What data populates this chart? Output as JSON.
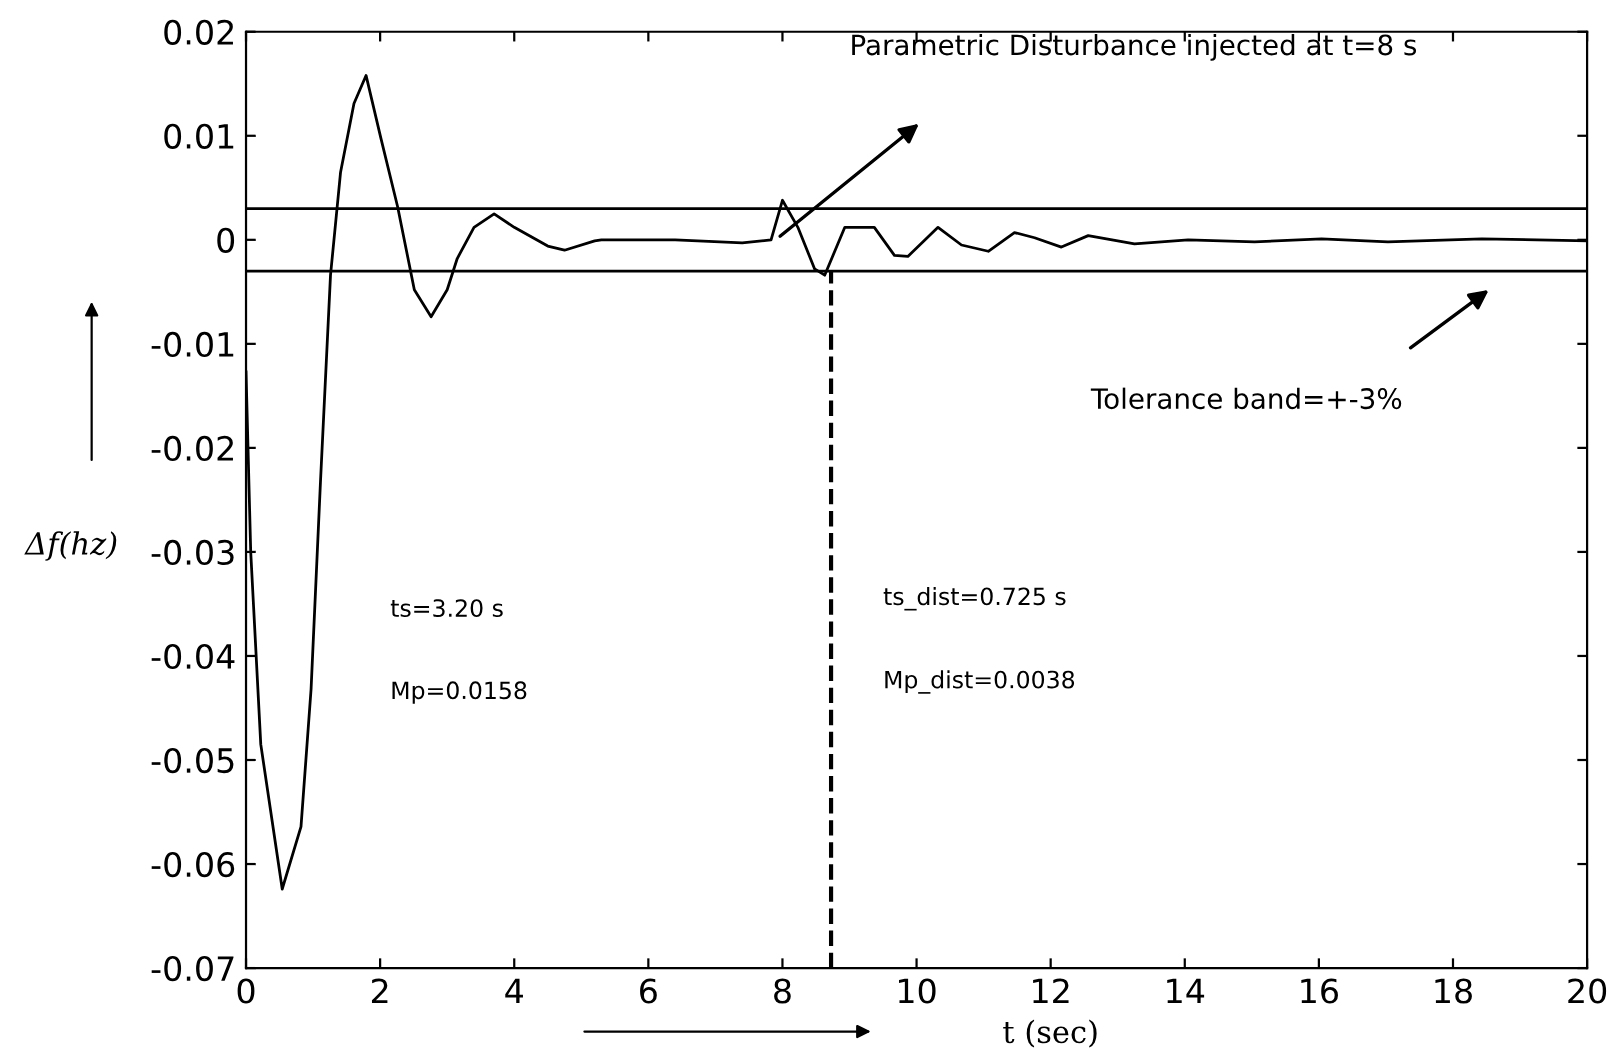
{
  "chart_data": {
    "type": "line",
    "xlabel": "t (sec)",
    "ylabel": "Δf(hz)",
    "xlim": [
      0,
      20
    ],
    "ylim": [
      -0.07,
      0.02
    ],
    "xticks": [
      0,
      2,
      4,
      6,
      8,
      10,
      12,
      14,
      16,
      18,
      20
    ],
    "yticks": [
      -0.07,
      -0.06,
      -0.05,
      -0.04,
      -0.03,
      -0.02,
      -0.01,
      0,
      0.01,
      0.02
    ],
    "grid": false,
    "marker": "none",
    "line_style": "solid",
    "series": [
      {
        "color": "#000000",
        "x": [
          0,
          0.07,
          0.22,
          0.54,
          0.82,
          0.97,
          1.11,
          1.26,
          1.41,
          1.61,
          1.79,
          2.01,
          2.26,
          2.51,
          2.76,
          3.0,
          3.15,
          3.4,
          3.7,
          4.0,
          4.5,
          4.75,
          5.2,
          5.3,
          6.4,
          7.4,
          7.83,
          8.0,
          8.23,
          8.48,
          8.63,
          8.93,
          9.12,
          9.37,
          9.67,
          9.87,
          10.32,
          10.67,
          11.07,
          11.46,
          11.76,
          12.16,
          12.56,
          13.25,
          14.05,
          15.04,
          16.04,
          17.03,
          18.43,
          20.0
        ],
        "values": [
          -0.0127,
          -0.03,
          -0.0485,
          -0.0624,
          -0.0564,
          -0.0432,
          -0.0233,
          -0.0034,
          0.0065,
          0.0131,
          0.0158,
          0.0098,
          0.0032,
          -0.0048,
          -0.0074,
          -0.0048,
          -0.0018,
          0.0012,
          0.0025,
          0.0012,
          -0.0006,
          -0.001,
          -0.0001,
          0,
          0,
          -0.0003,
          0,
          0.0038,
          0.0012,
          -0.0028,
          -0.0034,
          0.0012,
          0.0012,
          0.0012,
          -0.0015,
          -0.0016,
          0.0012,
          -0.0005,
          -0.0011,
          0.0007,
          0.0002,
          -0.0007,
          0.0004,
          -0.0004,
          0,
          -0.0002,
          0.0001,
          -0.0002,
          0.0001,
          -0.0001
        ]
      }
    ],
    "ref_lines": [
      {
        "axis": "y",
        "value": 0.003,
        "color": "#000000"
      },
      {
        "axis": "y",
        "value": -0.003,
        "color": "#000000"
      },
      {
        "axis": "x",
        "value": 8.725,
        "color": "#000000",
        "line_style": "dashed"
      }
    ],
    "annotations": [
      "Parametric Disturbance injected at t=8 s",
      "Tolerance band=+-3%",
      "ts=3.20 s",
      "Mp=0.0158",
      "ts_dist=0.725 s",
      "Mp_dist=0.0038"
    ]
  }
}
